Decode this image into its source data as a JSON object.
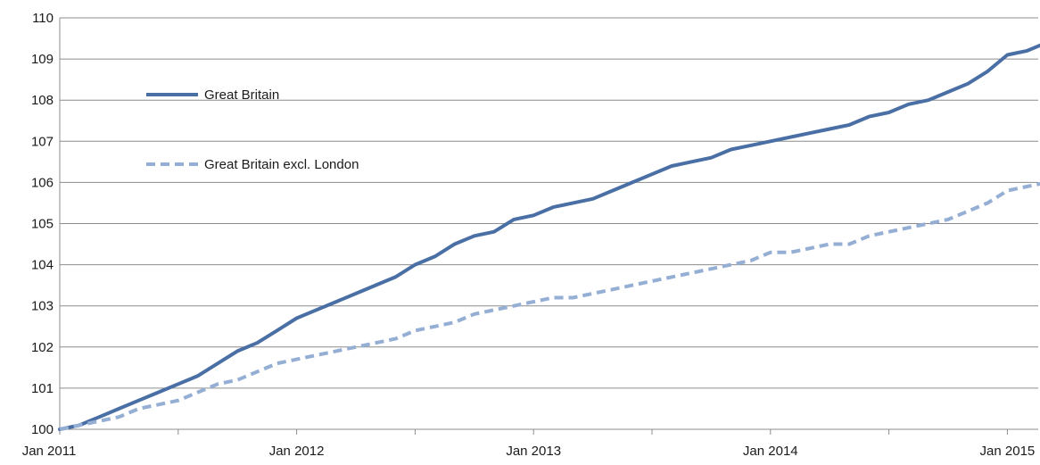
{
  "chart_data": {
    "type": "line",
    "title": "",
    "xlabel": "",
    "ylabel": "",
    "ylim": [
      100,
      110
    ],
    "yticks": [
      "100",
      "101",
      "102",
      "103",
      "104",
      "105",
      "106",
      "107",
      "108",
      "109",
      "110"
    ],
    "xticks": [
      "Jan 2011",
      "Jan 2012",
      "Jan 2013",
      "Jan 2014",
      "Jan 2015"
    ],
    "grid": true,
    "legend_position": "top-left",
    "x_start": "Jan 2011",
    "x_end": "Apr 2015",
    "series": [
      {
        "name": "Great Britain",
        "color": "#4a6fa5",
        "style": "solid",
        "values": [
          100.0,
          100.1,
          100.3,
          100.5,
          100.7,
          100.9,
          101.1,
          101.3,
          101.6,
          101.9,
          102.1,
          102.4,
          102.7,
          102.9,
          103.1,
          103.3,
          103.5,
          103.7,
          104.0,
          104.2,
          104.5,
          104.7,
          104.8,
          105.1,
          105.2,
          105.4,
          105.5,
          105.6,
          105.8,
          106.0,
          106.2,
          106.4,
          106.5,
          106.6,
          106.8,
          106.9,
          107.0,
          107.1,
          107.2,
          107.3,
          107.4,
          107.6,
          107.7,
          107.9,
          108.0,
          108.2,
          108.4,
          108.7,
          109.1,
          109.2,
          109.4
        ]
      },
      {
        "name": "Great Britain excl. London",
        "color": "#94aed4",
        "style": "dashed",
        "values": [
          100.0,
          100.1,
          100.2,
          100.3,
          100.5,
          100.6,
          100.7,
          100.9,
          101.1,
          101.2,
          101.4,
          101.6,
          101.7,
          101.8,
          101.9,
          102.0,
          102.1,
          102.2,
          102.4,
          102.5,
          102.6,
          102.8,
          102.9,
          103.0,
          103.1,
          103.2,
          103.2,
          103.3,
          103.4,
          103.5,
          103.6,
          103.7,
          103.8,
          103.9,
          104.0,
          104.1,
          104.3,
          104.3,
          104.4,
          104.5,
          104.5,
          104.7,
          104.8,
          104.9,
          105.0,
          105.1,
          105.3,
          105.5,
          105.8,
          105.9,
          106.0
        ]
      }
    ]
  }
}
